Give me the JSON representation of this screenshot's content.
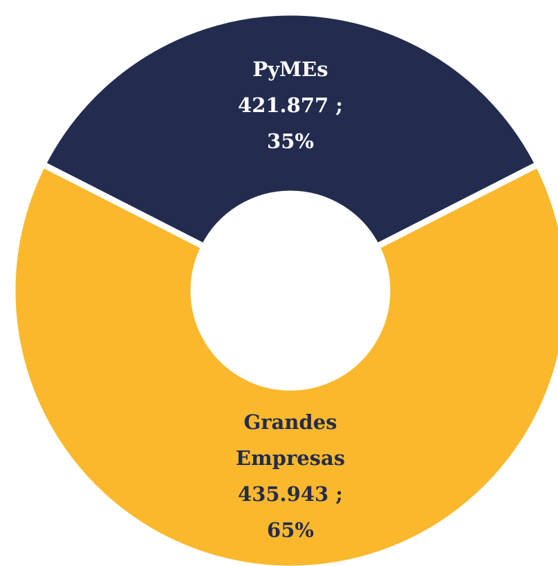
{
  "chart_data": {
    "type": "pie",
    "donut": true,
    "categories": [
      "PyMEs",
      "Grandes Empresas"
    ],
    "values": [
      35,
      65
    ],
    "value_labels": [
      "35%",
      "65%"
    ],
    "amount_labels": [
      "421.877 ;",
      "435.943 ;"
    ],
    "colors": [
      "#232c4f",
      "#fbb82c"
    ],
    "label_colors": [
      "#ffffff",
      "#232c4f"
    ]
  }
}
